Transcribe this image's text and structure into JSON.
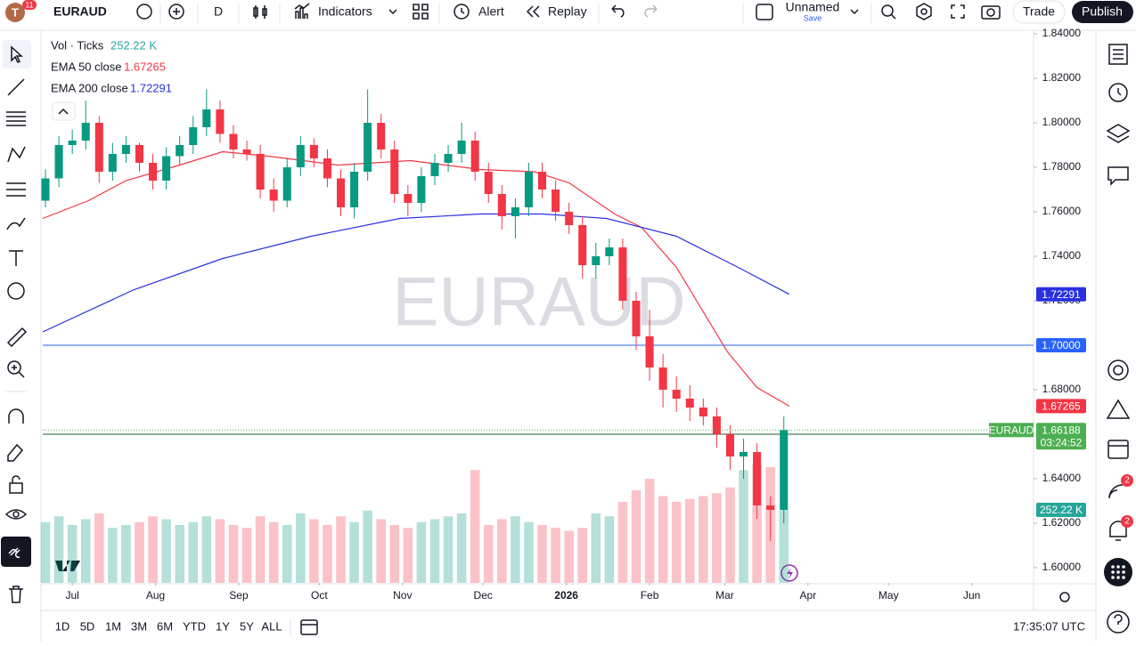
{
  "toolbar": {
    "avatar": "T",
    "badge": "11",
    "symbol": "EURAUD",
    "interval": "D",
    "indicators": "Indicators",
    "alert": "Alert",
    "replay": "Replay",
    "layout_name": "Unnamed",
    "save": "Save",
    "trade": "Trade",
    "publish": "Publish"
  },
  "right_toolbar": {
    "badges": [
      "2",
      "2"
    ]
  },
  "bottom_bar": {
    "ranges": [
      "1D",
      "5D",
      "1M",
      "3M",
      "6M",
      "YTD",
      "1Y",
      "5Y",
      "ALL"
    ],
    "clock": "17:35:07 UTC"
  },
  "chart_data": {
    "type": "candlestick",
    "watermark": "EURAUD",
    "xlim": [
      -11,
      358
    ],
    "ylim": [
      1.5932,
      1.8412
    ],
    "xticks": [
      {
        "value": 0,
        "label": "Jul"
      },
      {
        "value": 31,
        "label": "Aug"
      },
      {
        "value": 62,
        "label": "Sep"
      },
      {
        "value": 92,
        "label": "Oct"
      },
      {
        "value": 123,
        "label": "Nov"
      },
      {
        "value": 153,
        "label": "Dec"
      },
      {
        "value": 184,
        "label": "2026"
      },
      {
        "value": 215,
        "label": "Feb"
      },
      {
        "value": 243,
        "label": "Mar"
      },
      {
        "value": 274,
        "label": "Apr"
      },
      {
        "value": 304,
        "label": "May"
      },
      {
        "value": 335,
        "label": "Jun"
      }
    ],
    "yticks": [
      {
        "value": 1.84,
        "label": "1.84000"
      },
      {
        "value": 1.82,
        "label": "1.82000"
      },
      {
        "value": 1.8,
        "label": "1.80000"
      },
      {
        "value": 1.78,
        "label": "1.78000"
      },
      {
        "value": 1.76,
        "label": "1.76000"
      },
      {
        "value": 1.74,
        "label": "1.74000"
      },
      {
        "value": 1.72,
        "label": "1.72000"
      },
      {
        "value": 1.68,
        "label": "1.68000"
      },
      {
        "value": 1.64,
        "label": "1.64000"
      },
      {
        "value": 1.62,
        "label": "1.62000"
      },
      {
        "value": 1.6,
        "label": "1.60000"
      }
    ],
    "grid": false,
    "up_color": "#089981",
    "down_color": "#f23645",
    "candles": {
      "x": [
        -10,
        -5,
        0,
        5,
        10,
        15,
        20,
        25,
        30,
        35,
        40,
        45,
        50,
        55,
        60,
        65,
        70,
        75,
        80,
        85,
        90,
        95,
        100,
        105,
        110,
        115,
        120,
        125,
        130,
        135,
        140,
        145,
        150,
        155,
        160,
        165,
        170,
        175,
        180,
        185,
        190,
        195,
        200,
        205,
        210,
        215,
        220,
        225,
        230,
        235,
        240,
        245,
        250,
        255,
        260,
        265
      ],
      "open": [
        1.765,
        1.775,
        1.79,
        1.792,
        1.8,
        1.778,
        1.786,
        1.79,
        1.782,
        1.774,
        1.785,
        1.79,
        1.798,
        1.806,
        1.795,
        1.788,
        1.786,
        1.77,
        1.765,
        1.78,
        1.79,
        1.784,
        1.775,
        1.762,
        1.778,
        1.8,
        1.788,
        1.768,
        1.764,
        1.776,
        1.782,
        1.786,
        1.792,
        1.778,
        1.768,
        1.758,
        1.762,
        1.778,
        1.77,
        1.76,
        1.754,
        1.736,
        1.74,
        1.744,
        1.72,
        1.704,
        1.69,
        1.68,
        1.676,
        1.672,
        1.668,
        1.66,
        1.65,
        1.652,
        1.628,
        1.626
      ],
      "high": [
        1.779,
        1.794,
        1.797,
        1.81,
        1.803,
        1.791,
        1.794,
        1.791,
        1.786,
        1.789,
        1.794,
        1.803,
        1.815,
        1.81,
        1.799,
        1.792,
        1.79,
        1.775,
        1.784,
        1.794,
        1.793,
        1.788,
        1.779,
        1.782,
        1.815,
        1.804,
        1.792,
        1.772,
        1.78,
        1.786,
        1.79,
        1.8,
        1.796,
        1.782,
        1.772,
        1.766,
        1.782,
        1.782,
        1.774,
        1.764,
        1.758,
        1.746,
        1.748,
        1.748,
        1.724,
        1.716,
        1.696,
        1.686,
        1.682,
        1.676,
        1.672,
        1.664,
        1.658,
        1.656,
        1.632,
        1.668
      ],
      "low": [
        1.762,
        1.771,
        1.786,
        1.788,
        1.773,
        1.774,
        1.782,
        1.778,
        1.77,
        1.77,
        1.781,
        1.786,
        1.794,
        1.791,
        1.784,
        1.783,
        1.766,
        1.76,
        1.762,
        1.776,
        1.78,
        1.771,
        1.758,
        1.757,
        1.774,
        1.784,
        1.764,
        1.758,
        1.76,
        1.772,
        1.778,
        1.782,
        1.774,
        1.764,
        1.752,
        1.748,
        1.758,
        1.766,
        1.756,
        1.75,
        1.73,
        1.73,
        1.736,
        1.716,
        1.698,
        1.684,
        1.672,
        1.67,
        1.666,
        1.664,
        1.654,
        1.644,
        1.64,
        1.622,
        1.612,
        1.62
      ],
      "close": [
        1.775,
        1.79,
        1.792,
        1.8,
        1.778,
        1.786,
        1.79,
        1.782,
        1.774,
        1.785,
        1.79,
        1.798,
        1.806,
        1.795,
        1.788,
        1.786,
        1.77,
        1.765,
        1.78,
        1.79,
        1.784,
        1.775,
        1.762,
        1.778,
        1.8,
        1.788,
        1.768,
        1.764,
        1.776,
        1.782,
        1.786,
        1.792,
        1.778,
        1.768,
        1.758,
        1.762,
        1.778,
        1.77,
        1.76,
        1.754,
        1.736,
        1.74,
        1.744,
        1.72,
        1.704,
        1.69,
        1.68,
        1.676,
        1.672,
        1.668,
        1.66,
        1.65,
        1.652,
        1.628,
        1.626,
        1.66188
      ]
    },
    "volume": {
      "name": "Vol · Ticks",
      "ylim": [
        0,
        1908
      ],
      "last_label": "252.22 K",
      "label_color": "#26a69a",
      "values": [
        210,
        230,
        200,
        220,
        240,
        190,
        200,
        210,
        230,
        220,
        200,
        210,
        230,
        220,
        200,
        190,
        230,
        210,
        200,
        240,
        220,
        200,
        230,
        210,
        250,
        220,
        200,
        190,
        210,
        220,
        230,
        240,
        390,
        200,
        220,
        230,
        210,
        200,
        190,
        180,
        190,
        240,
        230,
        280,
        320,
        360,
        300,
        280,
        290,
        300,
        310,
        330,
        390,
        410,
        400,
        252.22
      ]
    },
    "series": [
      {
        "name": "EMA 50 close",
        "color": "#f23645",
        "x": [
          -11,
          6,
          20,
          40,
          56,
          73,
          99,
          126,
          152,
          172,
          185,
          202,
          212,
          225,
          244,
          255,
          267
        ],
        "values": [
          1.757,
          1.765,
          1.774,
          1.781,
          1.787,
          1.785,
          1.781,
          1.783,
          1.779,
          1.778,
          1.773,
          1.759,
          1.753,
          1.735,
          1.697,
          1.681,
          1.67265
        ]
      },
      {
        "name": "EMA 200 close",
        "color": "#2930e0",
        "x": [
          -11,
          23,
          56,
          89,
          122,
          152,
          175,
          199,
          225,
          248,
          267
        ],
        "values": [
          1.706,
          1.725,
          1.739,
          1.749,
          1.757,
          1.759,
          1.759,
          1.757,
          1.749,
          1.735,
          1.72291
        ]
      }
    ],
    "hlines": [
      {
        "value": 1.7,
        "color": "#2962ff"
      },
      {
        "value": 1.66,
        "color": "#1b5e20"
      }
    ],
    "price_labels": [
      {
        "value": 1.72291,
        "label": "1.72291",
        "color": "#2930e0"
      },
      {
        "value": 1.7,
        "label": "1.70000",
        "color": "#2962ff"
      },
      {
        "value": 1.67265,
        "label": "1.67265",
        "color": "#f23645"
      },
      {
        "value": 1.66,
        "label": "1.66000",
        "color": "#2962ff"
      }
    ],
    "last_price": {
      "name": "EURAUD",
      "value": 1.66188,
      "label": "1.66188",
      "countdown": "03:24:52",
      "color": "#4caf50"
    }
  }
}
